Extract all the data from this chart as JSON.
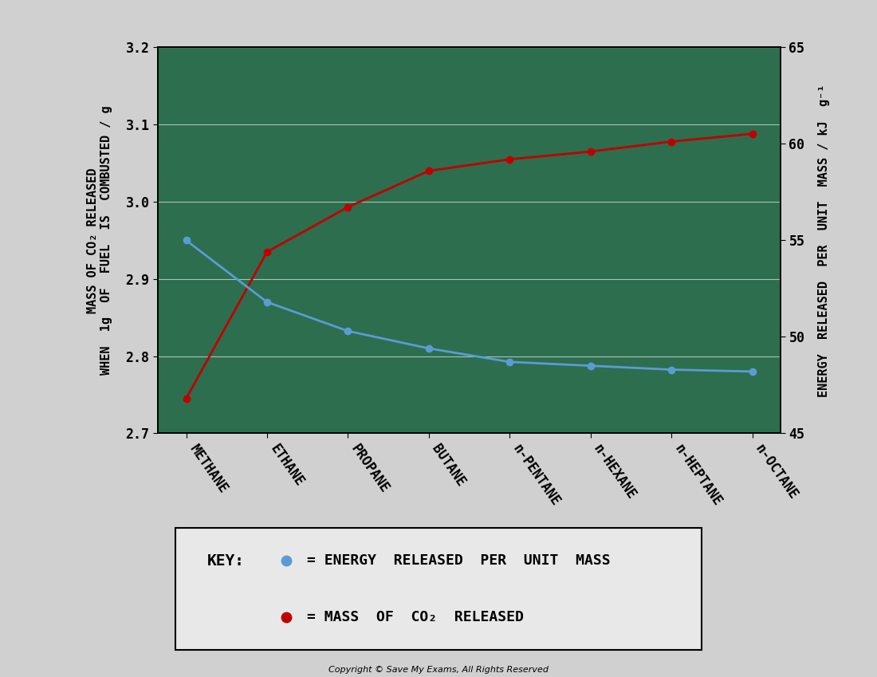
{
  "categories": [
    "METHANE",
    "ETHANE",
    "PROPANE",
    "BUTANE",
    "n-PENTANE",
    "n-HEXANE",
    "n-HEPTANE",
    "n-OCTANE"
  ],
  "red_values_left": [
    2.745,
    2.935,
    2.993,
    3.04,
    3.055,
    3.065,
    3.078,
    3.088
  ],
  "blue_values_right": [
    55.0,
    51.8,
    50.3,
    49.4,
    48.7,
    48.5,
    48.3,
    48.2
  ],
  "left_ylim": [
    2.7,
    3.2
  ],
  "left_yticks": [
    2.7,
    2.8,
    2.9,
    3.0,
    3.1,
    3.2
  ],
  "right_ylim": [
    45,
    65
  ],
  "right_yticks": [
    45,
    50,
    55,
    60,
    65
  ],
  "blue_color": "#5b9bd5",
  "red_color": "#c00000",
  "plot_bg_color": "#2d6e4e",
  "figure_bg_color": "#d0d0d0",
  "left_ylabel_line1": "MASS OF CO₂ RELEASED",
  "left_ylabel_line2": "WHEN  1g  OF  FUEL  IS  COMBUSTED / g",
  "right_ylabel": "ENERGY  RELEASED  PER  UNIT  MASS / kJ  g⁻¹",
  "copyright_text": "Copyright © Save My Exams, All Rights Reserved",
  "gridline_color": "#b0b0b0",
  "tick_fontsize": 12,
  "axis_label_fontsize": 11,
  "legend_fontsize": 13
}
